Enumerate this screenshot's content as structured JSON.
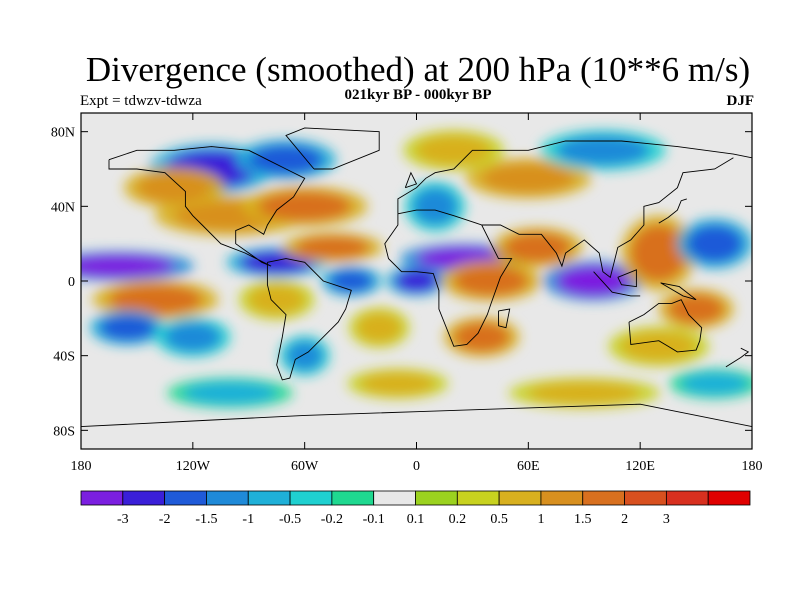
{
  "title": "Divergence (smoothed) at 200 hPa (10**6 m/s)",
  "subtitle": "021kyr BP - 000kyr BP",
  "experiment": "Expt = tdwzv-tdwza",
  "season": "DJF",
  "map": {
    "lon_range": [
      -180,
      180
    ],
    "lat_range": [
      -90,
      90
    ],
    "lat_ticks": [
      {
        "value": 80,
        "label": "80N"
      },
      {
        "value": 40,
        "label": "40N"
      },
      {
        "value": 0,
        "label": "0"
      },
      {
        "value": -40,
        "label": "40S"
      },
      {
        "value": -80,
        "label": "80S"
      }
    ],
    "lon_ticks": [
      {
        "value": -180,
        "label": "180"
      },
      {
        "value": -120,
        "label": "120W"
      },
      {
        "value": -60,
        "label": "60W"
      },
      {
        "value": 0,
        "label": "0"
      },
      {
        "value": 60,
        "label": "60E"
      },
      {
        "value": 120,
        "label": "120E"
      },
      {
        "value": 180,
        "label": "180"
      }
    ]
  },
  "colorbar": {
    "colors": [
      "#7b1fe0",
      "#3a1fd8",
      "#1f5ad8",
      "#1f8ad8",
      "#1fb0d8",
      "#1fd0d0",
      "#1fd890",
      "#e8e8e8",
      "#9bd21f",
      "#c8d21f",
      "#d8b01f",
      "#d8901f",
      "#d8701f",
      "#d8501f",
      "#d8301f",
      "#e00000"
    ],
    "labels": [
      "-3",
      "-2",
      "-1.5",
      "-1",
      "-0.5",
      "-0.2",
      "-0.1",
      "0.1",
      "0.2",
      "0.5",
      "1",
      "1.5",
      "2",
      "3"
    ]
  },
  "field_blobs": [
    {
      "lon": -160,
      "lat": 8,
      "rx": 30,
      "ry": 6,
      "v": -3
    },
    {
      "lon": -140,
      "lat": -10,
      "rx": 25,
      "ry": 8,
      "v": 2
    },
    {
      "lon": -155,
      "lat": -25,
      "rx": 15,
      "ry": 7,
      "v": -1.5
    },
    {
      "lon": -100,
      "lat": 35,
      "rx": 30,
      "ry": 8,
      "v": 1.5
    },
    {
      "lon": -110,
      "lat": 60,
      "rx": 25,
      "ry": 10,
      "v": -2
    },
    {
      "lon": -70,
      "lat": 65,
      "rx": 20,
      "ry": 8,
      "v": -1.5
    },
    {
      "lon": -130,
      "lat": 50,
      "rx": 20,
      "ry": 8,
      "v": 1.5
    },
    {
      "lon": -60,
      "lat": 40,
      "rx": 25,
      "ry": 8,
      "v": 2
    },
    {
      "lon": -75,
      "lat": 10,
      "rx": 20,
      "ry": 6,
      "v": -2
    },
    {
      "lon": -45,
      "lat": 18,
      "rx": 20,
      "ry": 6,
      "v": 2
    },
    {
      "lon": -75,
      "lat": -10,
      "rx": 15,
      "ry": 8,
      "v": 1
    },
    {
      "lon": -35,
      "lat": 0,
      "rx": 12,
      "ry": 6,
      "v": -1.5
    },
    {
      "lon": -60,
      "lat": -40,
      "rx": 10,
      "ry": 8,
      "v": -1
    },
    {
      "lon": -20,
      "lat": -25,
      "rx": 12,
      "ry": 8,
      "v": 1
    },
    {
      "lon": 0,
      "lat": 0,
      "rx": 12,
      "ry": 6,
      "v": -2
    },
    {
      "lon": 10,
      "lat": 40,
      "rx": 12,
      "ry": 10,
      "v": -1
    },
    {
      "lon": 25,
      "lat": 12,
      "rx": 25,
      "ry": 6,
      "v": -3
    },
    {
      "lon": 40,
      "lat": 0,
      "rx": 20,
      "ry": 8,
      "v": 2
    },
    {
      "lon": 35,
      "lat": -30,
      "rx": 15,
      "ry": 8,
      "v": 2
    },
    {
      "lon": 65,
      "lat": 18,
      "rx": 18,
      "ry": 8,
      "v": 2
    },
    {
      "lon": 60,
      "lat": 55,
      "rx": 25,
      "ry": 8,
      "v": 1.5
    },
    {
      "lon": 95,
      "lat": 0,
      "rx": 20,
      "ry": 8,
      "v": -3
    },
    {
      "lon": 130,
      "lat": 15,
      "rx": 15,
      "ry": 15,
      "v": 2
    },
    {
      "lon": 150,
      "lat": -15,
      "rx": 15,
      "ry": 8,
      "v": 2
    },
    {
      "lon": 160,
      "lat": 20,
      "rx": 15,
      "ry": 10,
      "v": -1.5
    },
    {
      "lon": 130,
      "lat": -35,
      "rx": 20,
      "ry": 8,
      "v": 1
    },
    {
      "lon": 100,
      "lat": 70,
      "rx": 25,
      "ry": 8,
      "v": -1
    },
    {
      "lon": 90,
      "lat": -60,
      "rx": 30,
      "ry": 6,
      "v": 1
    },
    {
      "lon": -100,
      "lat": -60,
      "rx": 25,
      "ry": 6,
      "v": -0.5
    },
    {
      "lon": -120,
      "lat": -30,
      "rx": 15,
      "ry": 8,
      "v": -1
    },
    {
      "lon": 20,
      "lat": 70,
      "rx": 20,
      "ry": 8,
      "v": 1
    },
    {
      "lon": -10,
      "lat": -55,
      "rx": 20,
      "ry": 6,
      "v": 1
    },
    {
      "lon": 160,
      "lat": -55,
      "rx": 18,
      "ry": 6,
      "v": -0.5
    }
  ],
  "coastlines": [
    [
      [
        -165,
        65
      ],
      [
        -150,
        70
      ],
      [
        -130,
        70
      ],
      [
        -110,
        72
      ],
      [
        -90,
        70
      ],
      [
        -80,
        65
      ],
      [
        -70,
        60
      ],
      [
        -60,
        55
      ],
      [
        -66,
        45
      ],
      [
        -75,
        38
      ],
      [
        -80,
        30
      ],
      [
        -82,
        25
      ],
      [
        -90,
        30
      ],
      [
        -97,
        27
      ],
      [
        -97,
        20
      ],
      [
        -90,
        15
      ],
      [
        -83,
        10
      ],
      [
        -78,
        8
      ],
      [
        -92,
        15
      ],
      [
        -105,
        20
      ],
      [
        -115,
        30
      ],
      [
        -120,
        35
      ],
      [
        -124,
        40
      ],
      [
        -124,
        48
      ],
      [
        -135,
        58
      ],
      [
        -150,
        60
      ],
      [
        -165,
        60
      ],
      [
        -165,
        65
      ]
    ],
    [
      [
        -80,
        10
      ],
      [
        -70,
        12
      ],
      [
        -60,
        10
      ],
      [
        -50,
        0
      ],
      [
        -35,
        -5
      ],
      [
        -38,
        -15
      ],
      [
        -42,
        -22
      ],
      [
        -48,
        -28
      ],
      [
        -58,
        -38
      ],
      [
        -65,
        -42
      ],
      [
        -68,
        -52
      ],
      [
        -72,
        -53
      ],
      [
        -75,
        -45
      ],
      [
        -72,
        -30
      ],
      [
        -70,
        -18
      ],
      [
        -78,
        -10
      ],
      [
        -80,
        -2
      ],
      [
        -80,
        10
      ]
    ],
    [
      [
        -10,
        36
      ],
      [
        0,
        38
      ],
      [
        10,
        38
      ],
      [
        20,
        35
      ],
      [
        32,
        31
      ],
      [
        35,
        30
      ],
      [
        44,
        12
      ],
      [
        51,
        12
      ],
      [
        45,
        2
      ],
      [
        40,
        -12
      ],
      [
        38,
        -18
      ],
      [
        33,
        -28
      ],
      [
        27,
        -34
      ],
      [
        20,
        -35
      ],
      [
        18,
        -30
      ],
      [
        12,
        -15
      ],
      [
        12,
        -5
      ],
      [
        9,
        4
      ],
      [
        0,
        5
      ],
      [
        -8,
        5
      ],
      [
        -15,
        12
      ],
      [
        -17,
        20
      ],
      [
        -10,
        30
      ],
      [
        -10,
        36
      ]
    ],
    [
      [
        -10,
        36
      ],
      [
        -10,
        44
      ],
      [
        0,
        50
      ],
      [
        5,
        55
      ],
      [
        10,
        58
      ],
      [
        20,
        60
      ],
      [
        30,
        70
      ],
      [
        60,
        70
      ],
      [
        80,
        75
      ],
      [
        110,
        75
      ],
      [
        140,
        72
      ],
      [
        170,
        68
      ],
      [
        180,
        66
      ]
    ],
    [
      [
        35,
        30
      ],
      [
        45,
        30
      ],
      [
        55,
        25
      ],
      [
        60,
        25
      ],
      [
        67,
        25
      ],
      [
        75,
        15
      ],
      [
        78,
        8
      ],
      [
        80,
        15
      ],
      [
        90,
        22
      ],
      [
        98,
        15
      ],
      [
        100,
        5
      ],
      [
        104,
        2
      ],
      [
        106,
        10
      ],
      [
        108,
        18
      ],
      [
        115,
        22
      ],
      [
        122,
        30
      ],
      [
        122,
        40
      ],
      [
        130,
        42
      ],
      [
        140,
        50
      ],
      [
        143,
        58
      ],
      [
        160,
        60
      ],
      [
        170,
        66
      ]
    ],
    [
      [
        114,
        -22
      ],
      [
        122,
        -18
      ],
      [
        130,
        -12
      ],
      [
        137,
        -12
      ],
      [
        142,
        -10
      ],
      [
        146,
        -18
      ],
      [
        153,
        -25
      ],
      [
        152,
        -32
      ],
      [
        150,
        -37
      ],
      [
        140,
        -38
      ],
      [
        135,
        -35
      ],
      [
        130,
        -32
      ],
      [
        115,
        -34
      ],
      [
        114,
        -22
      ]
    ],
    [
      [
        -55,
        60
      ],
      [
        -45,
        60
      ],
      [
        -20,
        70
      ],
      [
        -20,
        80
      ],
      [
        -60,
        82
      ],
      [
        -70,
        78
      ],
      [
        -55,
        60
      ]
    ],
    [
      [
        -180,
        -78
      ],
      [
        -120,
        -75
      ],
      [
        -60,
        -72
      ],
      [
        0,
        -70
      ],
      [
        60,
        -68
      ],
      [
        120,
        -66
      ],
      [
        180,
        -78
      ]
    ],
    [
      [
        95,
        5
      ],
      [
        105,
        -6
      ],
      [
        115,
        -8
      ],
      [
        120,
        -8
      ]
    ],
    [
      [
        108,
        2
      ],
      [
        118,
        6
      ],
      [
        118,
        -3
      ],
      [
        110,
        -2
      ],
      [
        108,
        2
      ]
    ],
    [
      [
        131,
        -1
      ],
      [
        141,
        -3
      ],
      [
        150,
        -10
      ],
      [
        143,
        -8
      ],
      [
        131,
        -1
      ]
    ],
    [
      [
        130,
        31
      ],
      [
        135,
        34
      ],
      [
        140,
        38
      ],
      [
        142,
        43
      ],
      [
        145,
        44
      ]
    ],
    [
      [
        44,
        -16
      ],
      [
        50,
        -15
      ],
      [
        48,
        -25
      ],
      [
        44,
        -24
      ],
      [
        44,
        -16
      ]
    ],
    [
      [
        -6,
        50
      ],
      [
        -3,
        58
      ],
      [
        0,
        52
      ],
      [
        -6,
        50
      ]
    ],
    [
      [
        166,
        -46
      ],
      [
        174,
        -41
      ],
      [
        178,
        -38
      ],
      [
        174,
        -36
      ]
    ]
  ]
}
